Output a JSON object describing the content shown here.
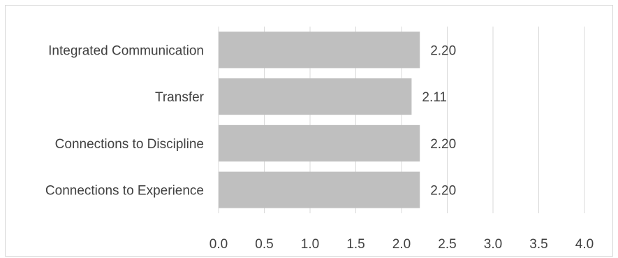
{
  "chart_data": {
    "type": "bar",
    "orientation": "horizontal",
    "title": "",
    "xlabel": "",
    "ylabel": "",
    "categories": [
      "Integrated Communication",
      "Transfer",
      "Connections to Discipline",
      "Connections to Experience"
    ],
    "values": [
      2.2,
      2.11,
      2.2,
      2.2
    ],
    "value_labels": [
      "2.20",
      "2.11",
      "2.20",
      "2.20"
    ],
    "xlim": [
      0,
      4
    ],
    "x_ticks": [
      "0.0",
      "0.5",
      "1.0",
      "1.5",
      "2.0",
      "2.5",
      "3.0",
      "3.5",
      "4.0"
    ],
    "grid": "vertical",
    "legend": "none",
    "bar_color": "#bfbfbf",
    "grid_color": "#d9d9d9",
    "text_color": "#404040"
  }
}
